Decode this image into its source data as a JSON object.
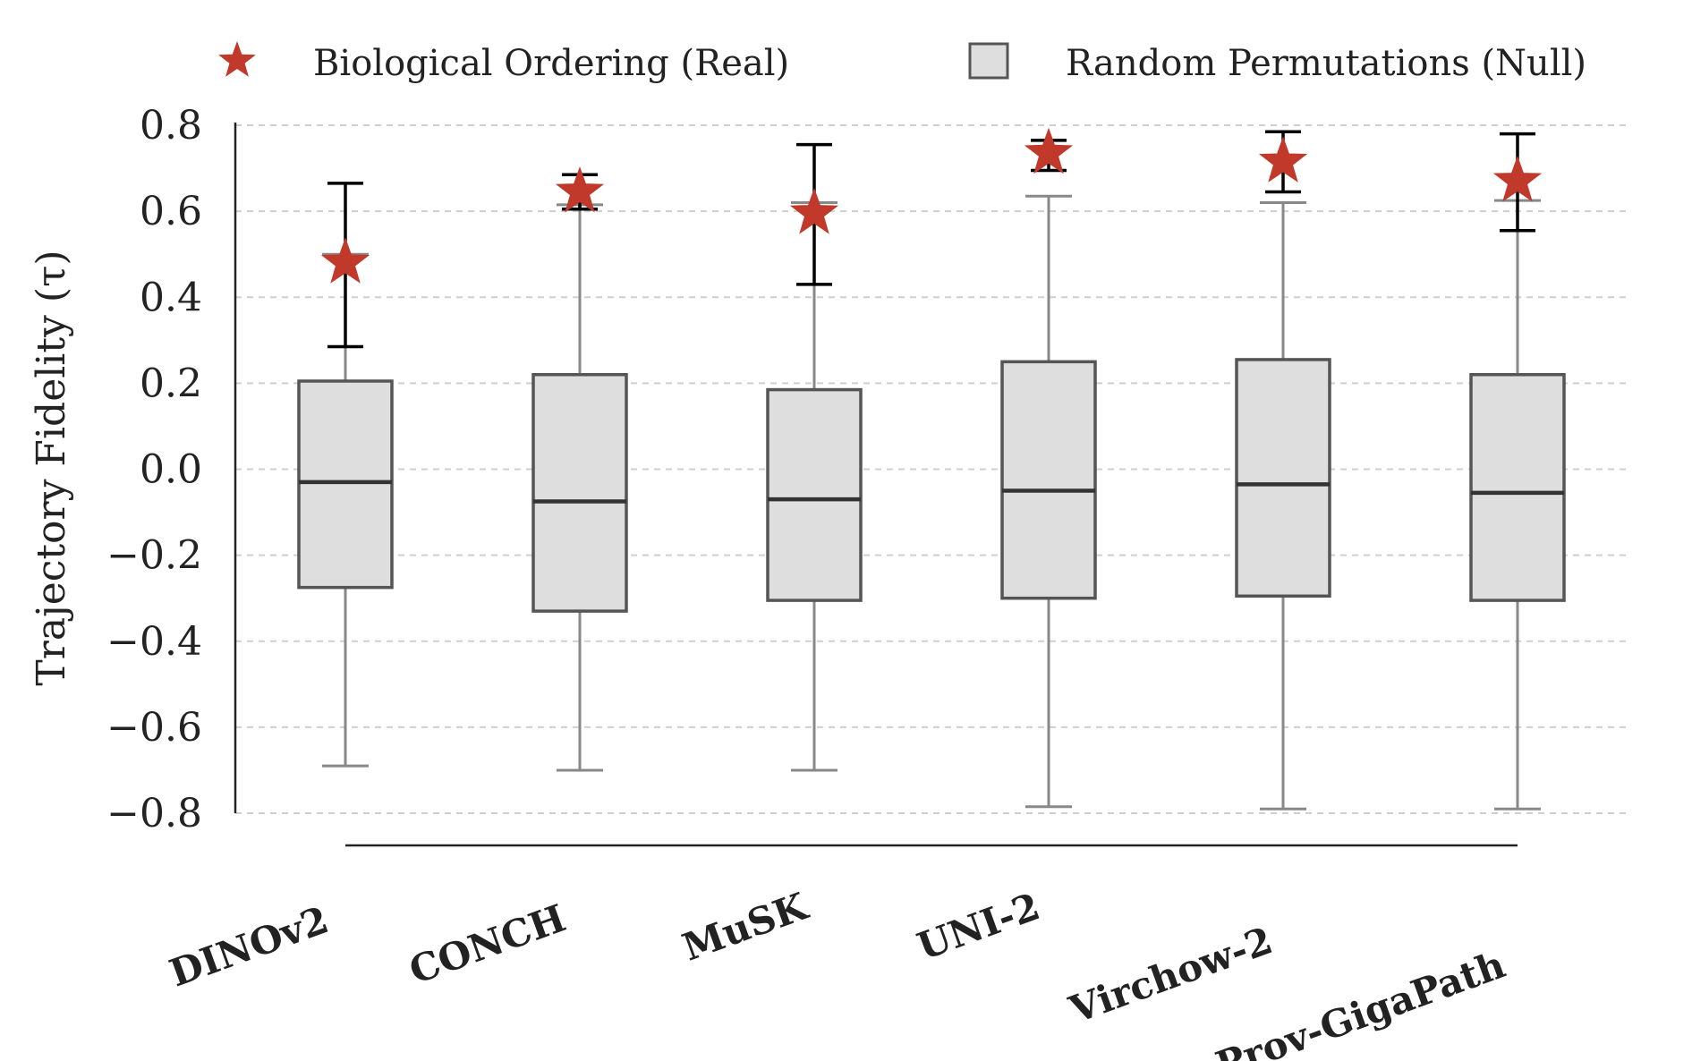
{
  "chart_data": {
    "type": "box",
    "title": "",
    "xlabel": "",
    "ylabel": "Trajectory Fidelity (τ)",
    "ylim": [
      -0.8,
      0.8
    ],
    "yticks": [
      "0.8",
      "0.6",
      "0.4",
      "0.2",
      "0.0",
      "−0.2",
      "−0.4",
      "−0.6",
      "−0.8"
    ],
    "ytick_values": [
      0.8,
      0.6,
      0.4,
      0.2,
      0.0,
      -0.2,
      -0.4,
      -0.6,
      -0.8
    ],
    "grid": "y-dashed",
    "categories": [
      "DINOv2",
      "CONCH",
      "MuSK",
      "UNI-2",
      "Virchow-2",
      "Prov-GigaPath"
    ],
    "legend": {
      "placement": "top",
      "entries": [
        {
          "label": "Biological Ordering (Real)",
          "marker": "star",
          "color": "#c0392b"
        },
        {
          "label": "Random Permutations (Null)",
          "marker": "box",
          "color": "#dedede"
        }
      ]
    },
    "series": [
      {
        "name": "Random Permutations (Null)",
        "boxes": [
          {
            "whisker_low": -0.69,
            "q1": -0.275,
            "median": -0.03,
            "q3": 0.205,
            "whisker_high": 0.5
          },
          {
            "whisker_low": -0.7,
            "q1": -0.33,
            "median": -0.075,
            "q3": 0.22,
            "whisker_high": 0.615
          },
          {
            "whisker_low": -0.7,
            "q1": -0.305,
            "median": -0.07,
            "q3": 0.185,
            "whisker_high": 0.62
          },
          {
            "whisker_low": -0.785,
            "q1": -0.3,
            "median": -0.05,
            "q3": 0.25,
            "whisker_high": 0.635
          },
          {
            "whisker_low": -0.79,
            "q1": -0.295,
            "median": -0.035,
            "q3": 0.255,
            "whisker_high": 0.62
          },
          {
            "whisker_low": -0.79,
            "q1": -0.305,
            "median": -0.055,
            "q3": 0.22,
            "whisker_high": 0.625
          }
        ]
      },
      {
        "name": "Biological Ordering (Real)",
        "values": [
          0.48,
          0.645,
          0.595,
          0.735,
          0.715,
          0.67
        ],
        "error_low": [
          0.285,
          0.605,
          0.43,
          0.695,
          0.645,
          0.555
        ],
        "error_high": [
          0.665,
          0.685,
          0.755,
          0.765,
          0.785,
          0.78
        ]
      }
    ]
  }
}
